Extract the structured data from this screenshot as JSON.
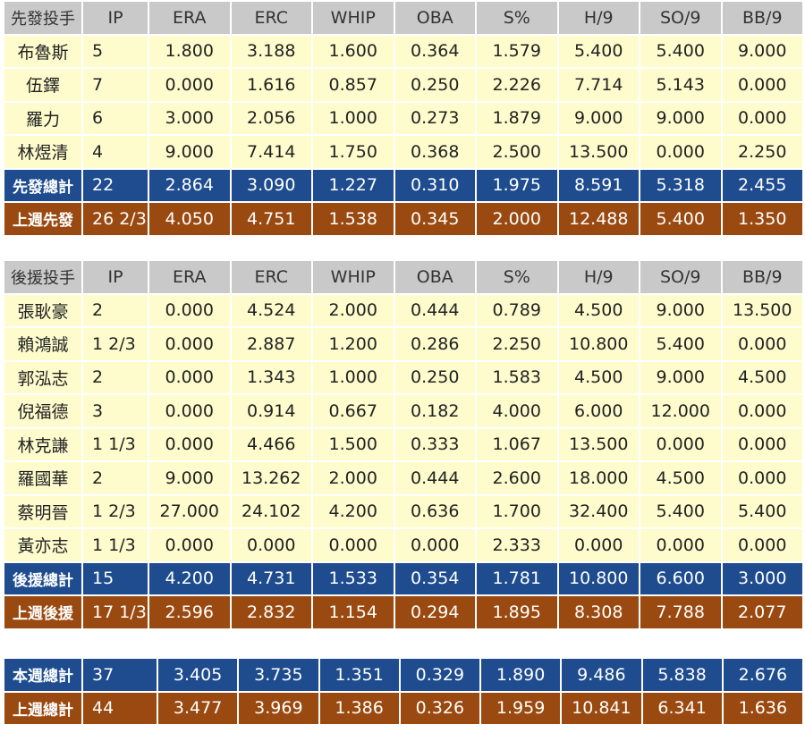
{
  "columns": [
    "IP",
    "ERA",
    "ERC",
    "WHIP",
    "OBA",
    "S%",
    "H/9",
    "SO/9",
    "BB/9"
  ],
  "starters": {
    "header": "先發投手",
    "rows": [
      [
        "布魯斯",
        "5",
        "1.800",
        "3.188",
        "1.600",
        "0.364",
        "1.579",
        "5.400",
        "5.400",
        "9.000"
      ],
      [
        "伍鐸",
        "7",
        "0.000",
        "1.616",
        "0.857",
        "0.250",
        "2.226",
        "7.714",
        "5.143",
        "0.000"
      ],
      [
        "羅力",
        "6",
        "3.000",
        "2.056",
        "1.000",
        "0.273",
        "1.879",
        "9.000",
        "9.000",
        "0.000"
      ],
      [
        "林煜清",
        "4",
        "9.000",
        "7.414",
        "1.750",
        "0.368",
        "2.500",
        "13.500",
        "0.000",
        "2.250"
      ]
    ],
    "total": [
      "先發總計",
      "22",
      "2.864",
      "3.090",
      "1.227",
      "0.310",
      "1.975",
      "8.591",
      "5.318",
      "2.455"
    ],
    "last_week": [
      "上週先發",
      "26 2/3",
      "4.050",
      "4.751",
      "1.538",
      "0.345",
      "2.000",
      "12.488",
      "5.400",
      "1.350"
    ]
  },
  "relievers": {
    "header": "後援投手",
    "rows": [
      [
        "張耿豪",
        "2",
        "0.000",
        "4.524",
        "2.000",
        "0.444",
        "0.789",
        "4.500",
        "9.000",
        "13.500"
      ],
      [
        "賴鴻誠",
        "1 2/3",
        "0.000",
        "2.887",
        "1.200",
        "0.286",
        "2.250",
        "10.800",
        "5.400",
        "0.000"
      ],
      [
        "郭泓志",
        "2",
        "0.000",
        "1.343",
        "1.000",
        "0.250",
        "1.583",
        "4.500",
        "9.000",
        "4.500"
      ],
      [
        "倪福德",
        "3",
        "0.000",
        "0.914",
        "0.667",
        "0.182",
        "4.000",
        "6.000",
        "12.000",
        "0.000"
      ],
      [
        "林克謙",
        "1 1/3",
        "0.000",
        "4.466",
        "1.500",
        "0.333",
        "1.067",
        "13.500",
        "0.000",
        "0.000"
      ],
      [
        "羅國華",
        "2",
        "9.000",
        "13.262",
        "2.000",
        "0.444",
        "2.600",
        "18.000",
        "4.500",
        "0.000"
      ],
      [
        "蔡明晉",
        "1 2/3",
        "27.000",
        "24.102",
        "4.200",
        "0.636",
        "1.700",
        "32.400",
        "5.400",
        "5.400"
      ],
      [
        "黃亦志",
        "1 1/3",
        "0.000",
        "0.000",
        "0.000",
        "0.000",
        "2.333",
        "0.000",
        "0.000",
        "0.000"
      ]
    ],
    "total": [
      "後援總計",
      "15",
      "4.200",
      "4.731",
      "1.533",
      "0.354",
      "1.781",
      "10.800",
      "6.600",
      "3.000"
    ],
    "last_week": [
      "上週後援",
      "17 1/3",
      "2.596",
      "2.832",
      "1.154",
      "0.294",
      "1.895",
      "8.308",
      "7.788",
      "2.077"
    ]
  },
  "summary": {
    "this_week": [
      "本週總計",
      "37",
      "3.405",
      "3.735",
      "1.351",
      "0.329",
      "1.890",
      "9.486",
      "5.838",
      "2.676"
    ],
    "last_week": [
      "上週總計",
      "44",
      "3.477",
      "3.969",
      "1.386",
      "0.326",
      "1.959",
      "10.841",
      "6.341",
      "1.636"
    ]
  },
  "colors": {
    "header_bg": "#c9c9c9",
    "row_bg": "#fefccd",
    "total_bg": "#1e4c8e",
    "last_week_bg": "#9a4a10"
  }
}
